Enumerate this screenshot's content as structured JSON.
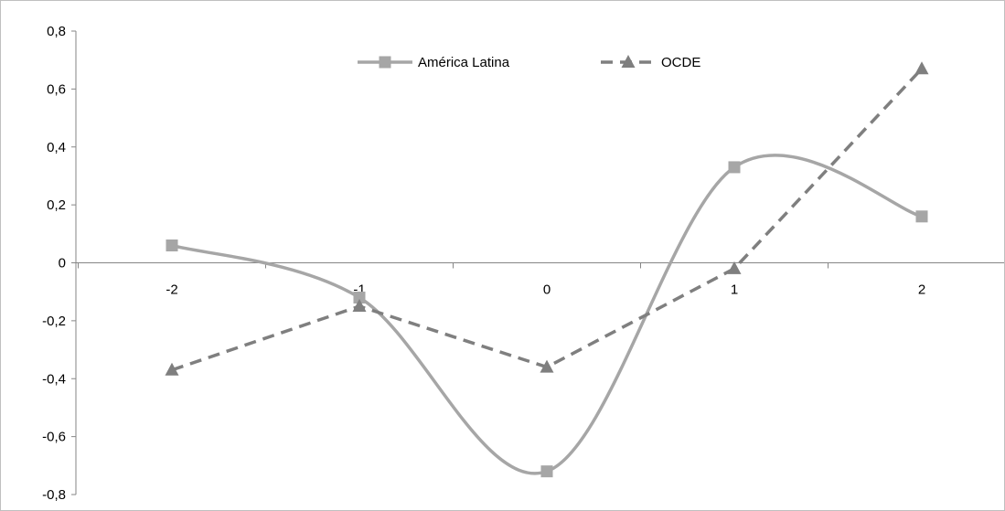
{
  "chart_data": {
    "type": "line",
    "x": [
      -2,
      -1,
      0,
      1,
      2
    ],
    "x_tick_labels": [
      "-2",
      "-1",
      "0",
      "1",
      "2"
    ],
    "y_tick_labels": [
      "0,8",
      "0,6",
      "0,4",
      "0,2",
      "0",
      "-0,2",
      "-0,4",
      "-0,6",
      "-0,8"
    ],
    "y_ticks": [
      0.8,
      0.6,
      0.4,
      0.2,
      0,
      -0.2,
      -0.4,
      -0.6,
      -0.8
    ],
    "ylim": [
      -0.8,
      0.8
    ],
    "grid": false,
    "legend_position": "top-center",
    "series": [
      {
        "name": "América Latina",
        "values": [
          0.06,
          -0.12,
          -0.72,
          0.33,
          0.16
        ],
        "color": "#a6a6a6",
        "marker": "square",
        "line_style": "solid-smooth"
      },
      {
        "name": "OCDE",
        "values": [
          -0.37,
          -0.15,
          -0.36,
          -0.02,
          0.67
        ],
        "color": "#7f7f7f",
        "marker": "triangle",
        "line_style": "dashed"
      }
    ]
  }
}
